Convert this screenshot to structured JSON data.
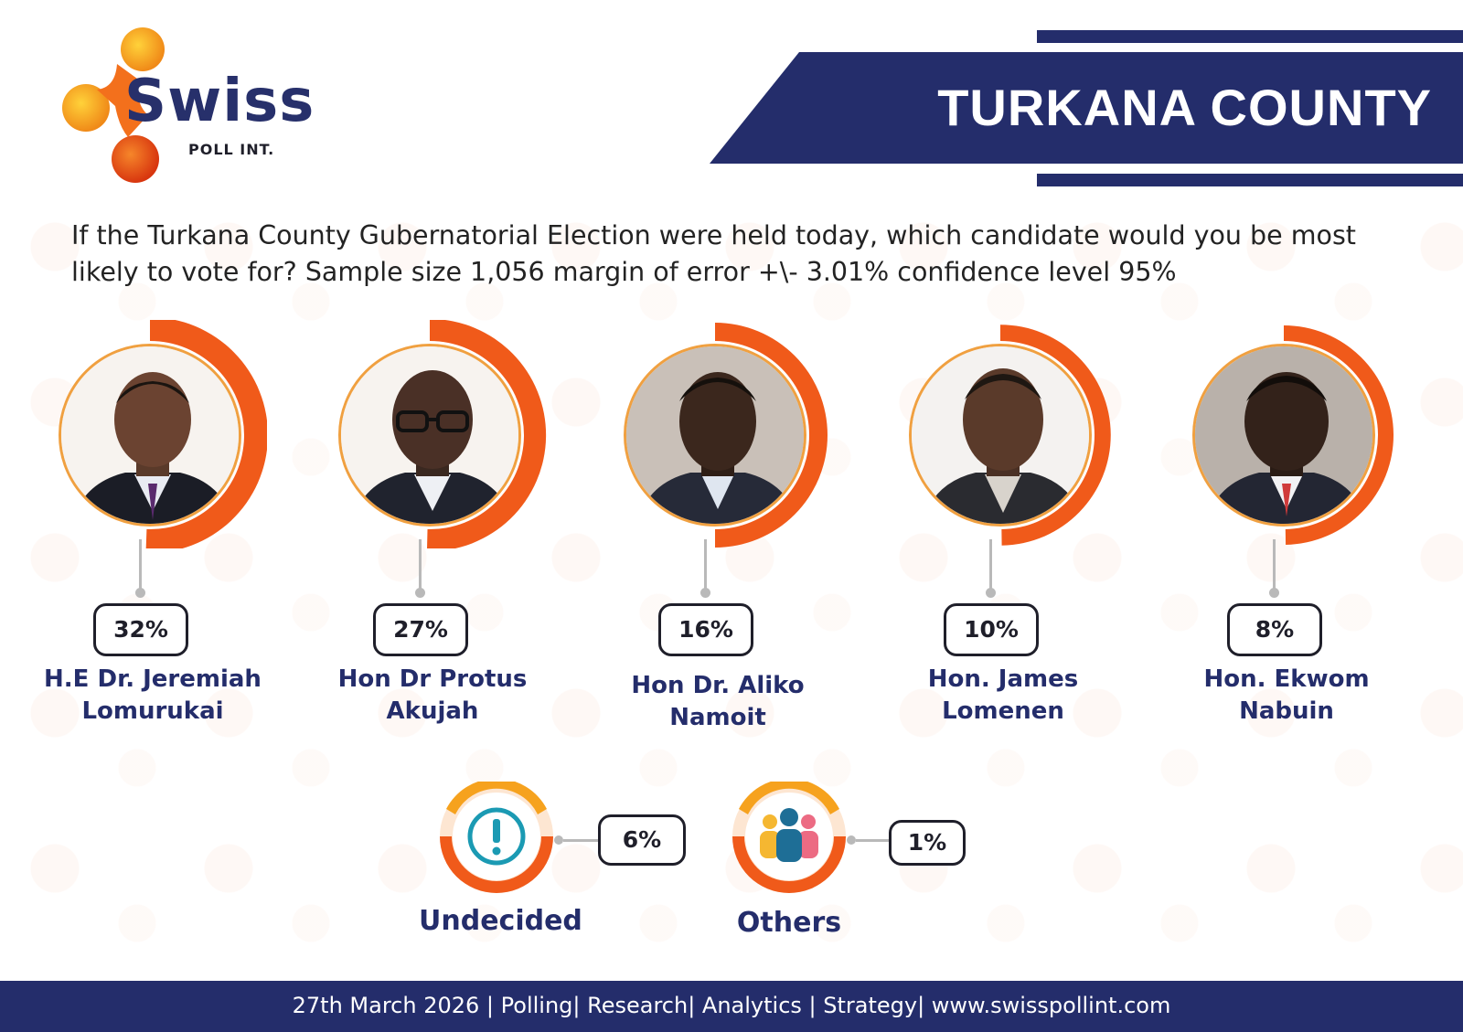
{
  "brand": {
    "name": "Swiss",
    "subtitle": "POLL INT."
  },
  "header": {
    "title": "TURKANA COUNTY"
  },
  "question": {
    "line1": "If the Turkana County Gubernatorial Election were held today, which candidate would you be most",
    "line2": "likely to vote for?  Sample size 1,056 margin of error +\\- 3.01% confidence level 95%"
  },
  "chart_data": {
    "type": "bar",
    "title": "TURKANA COUNTY",
    "categories": [
      "H.E Dr. Jeremiah Lomurukai",
      "Hon Dr Protus Akujah",
      "Hon Dr. Aliko Namoit",
      "Hon. James Lomenen",
      "Hon. Ekwom Nabuin",
      "Undecided",
      "Others"
    ],
    "values": [
      32,
      27,
      16,
      10,
      8,
      6,
      1
    ],
    "unit": "%",
    "candidates": [
      {
        "line1": "H.E Dr. Jeremiah",
        "line2": "Lomurukai",
        "value": 32,
        "label": "32%"
      },
      {
        "line1": "Hon Dr Protus",
        "line2": "Akujah",
        "value": 27,
        "label": "27%"
      },
      {
        "line1": "Hon Dr. Aliko",
        "line2": "Namoit",
        "value": 16,
        "label": "16%"
      },
      {
        "line1": "Hon. James",
        "line2": "Lomenen",
        "value": 10,
        "label": "10%"
      },
      {
        "line1": "Hon. Ekwom",
        "line2": "Nabuin",
        "value": 8,
        "label": "8%"
      }
    ],
    "extras": [
      {
        "name": "Undecided",
        "value": 6,
        "label": "6%",
        "icon": "exclamation-icon"
      },
      {
        "name": "Others",
        "value": 1,
        "label": "1%",
        "icon": "people-icon"
      }
    ]
  },
  "footer": {
    "text": "27th March 2026 | Polling| Research| Analytics | Strategy| www.swisspollint.com"
  },
  "colors": {
    "navy": "#242d6b",
    "orange": "#f05a1a",
    "amber": "#f6a21e",
    "teal": "#1b9ab3"
  }
}
